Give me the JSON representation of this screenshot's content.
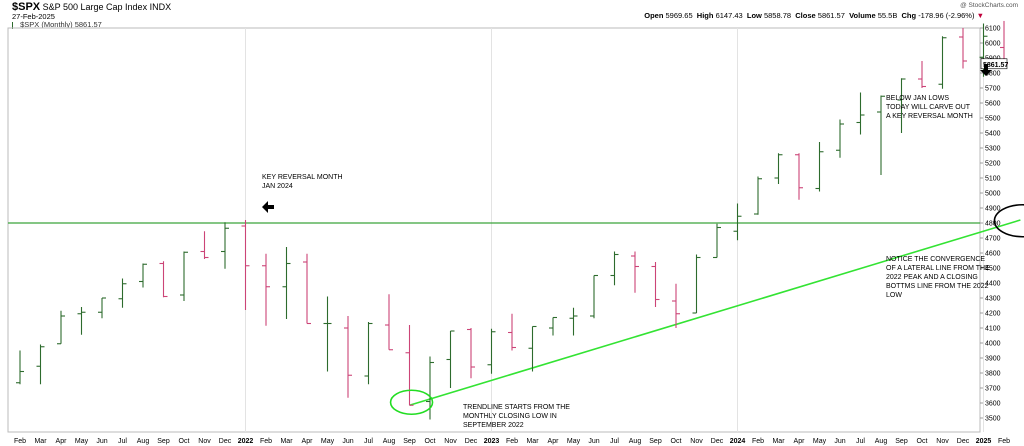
{
  "header": {
    "symbol": "$SPX",
    "name": "S&P 500 Large Cap Index",
    "exchange": "INDX",
    "date": "27-Feb-2025",
    "legend": "$SPX (Monthly) 5861.57",
    "credit": "@ StockCharts.com",
    "open_label": "Open",
    "open": "5969.65",
    "high_label": "High",
    "high": "6147.43",
    "low_label": "Low",
    "low": "5858.78",
    "close_label": "Close",
    "close": "5861.57",
    "volume_label": "Volume",
    "volume": "55.5B",
    "chg_label": "Chg",
    "chg": "-178.96 (-2.96%)",
    "chg_arrow": "▼"
  },
  "annotations": {
    "key_reversal": [
      "KEY REVERSAL MONTH",
      "JAN 2024"
    ],
    "below_jan": [
      "BELOW JAN LOWS",
      "TODAY WILL CARVE OUT",
      "A KEY REVERSAL MONTH"
    ],
    "convergence": [
      "NOTICE THE CONVERGENCE",
      "OF A LATERAL LINE FROM THE",
      "2022 PEAK AND A CLOSING",
      "BOTTMS LINE FROM THE 2022",
      "LOW"
    ],
    "trendline": [
      "TRENDLINE STARTS FROM THE",
      "MONTHLY CLOSING LOW IN",
      "SEPTEMBER 2022"
    ]
  },
  "colors": {
    "up": "#2d6b2d",
    "down": "#cc4477",
    "lateral_line": "#3aa53a",
    "trend_line": "#33e333",
    "circle_green": "#22dd22",
    "circle_black": "#000000",
    "grid": "#e3e3e3"
  },
  "chart_data": {
    "type": "ohlc",
    "y_axis_position": "right",
    "ylim": [
      3500,
      6150
    ],
    "y_ticks": [
      3500,
      3600,
      3700,
      3800,
      3900,
      4000,
      4100,
      4200,
      4300,
      4400,
      4500,
      4600,
      4700,
      4800,
      4900,
      5000,
      5100,
      5200,
      5300,
      5400,
      5500,
      5600,
      5700,
      5800,
      5900,
      6000,
      6100
    ],
    "last_price_label": "5861.57",
    "x_labels": [
      {
        "i": 0,
        "label": "Feb"
      },
      {
        "i": 1,
        "label": "Mar"
      },
      {
        "i": 2,
        "label": "Apr"
      },
      {
        "i": 3,
        "label": "May"
      },
      {
        "i": 4,
        "label": "Jun"
      },
      {
        "i": 5,
        "label": "Jul"
      },
      {
        "i": 6,
        "label": "Aug"
      },
      {
        "i": 7,
        "label": "Sep"
      },
      {
        "i": 8,
        "label": "Oct"
      },
      {
        "i": 9,
        "label": "Nov"
      },
      {
        "i": 10,
        "label": "Dec"
      },
      {
        "i": 11,
        "label": "2022",
        "bold": true
      },
      {
        "i": 12,
        "label": "Feb"
      },
      {
        "i": 13,
        "label": "Mar"
      },
      {
        "i": 14,
        "label": "Apr"
      },
      {
        "i": 15,
        "label": "May"
      },
      {
        "i": 16,
        "label": "Jun"
      },
      {
        "i": 17,
        "label": "Jul"
      },
      {
        "i": 18,
        "label": "Aug"
      },
      {
        "i": 19,
        "label": "Sep"
      },
      {
        "i": 20,
        "label": "Oct"
      },
      {
        "i": 21,
        "label": "Nov"
      },
      {
        "i": 22,
        "label": "Dec"
      },
      {
        "i": 23,
        "label": "2023",
        "bold": true
      },
      {
        "i": 24,
        "label": "Feb"
      },
      {
        "i": 25,
        "label": "Mar"
      },
      {
        "i": 26,
        "label": "Apr"
      },
      {
        "i": 27,
        "label": "May"
      },
      {
        "i": 28,
        "label": "Jun"
      },
      {
        "i": 29,
        "label": "Jul"
      },
      {
        "i": 30,
        "label": "Aug"
      },
      {
        "i": 31,
        "label": "Sep"
      },
      {
        "i": 32,
        "label": "Oct"
      },
      {
        "i": 33,
        "label": "Nov"
      },
      {
        "i": 34,
        "label": "Dec"
      },
      {
        "i": 35,
        "label": "2024",
        "bold": true
      },
      {
        "i": 36,
        "label": "Feb"
      },
      {
        "i": 37,
        "label": "Mar"
      },
      {
        "i": 38,
        "label": "Apr"
      },
      {
        "i": 39,
        "label": "May"
      },
      {
        "i": 40,
        "label": "Jun"
      },
      {
        "i": 41,
        "label": "Jul"
      },
      {
        "i": 42,
        "label": "Aug"
      },
      {
        "i": 43,
        "label": "Sep"
      },
      {
        "i": 44,
        "label": "Oct"
      },
      {
        "i": 45,
        "label": "Nov"
      },
      {
        "i": 46,
        "label": "Dec"
      },
      {
        "i": 47,
        "label": "2025",
        "bold": true
      },
      {
        "i": 48,
        "label": "Feb"
      }
    ],
    "bars": [
      {
        "o": 3735,
        "h": 3950,
        "l": 3725,
        "c": 3810
      },
      {
        "o": 3845,
        "h": 3990,
        "l": 3725,
        "c": 3975
      },
      {
        "o": 3995,
        "h": 4215,
        "l": 3995,
        "c": 4180
      },
      {
        "o": 4195,
        "h": 4240,
        "l": 4055,
        "c": 4205
      },
      {
        "o": 4205,
        "h": 4300,
        "l": 4165,
        "c": 4300
      },
      {
        "o": 4295,
        "h": 4430,
        "l": 4235,
        "c": 4395
      },
      {
        "o": 4410,
        "h": 4530,
        "l": 4370,
        "c": 4525
      },
      {
        "o": 4530,
        "h": 4545,
        "l": 4305,
        "c": 4310
      },
      {
        "o": 4320,
        "h": 4610,
        "l": 4280,
        "c": 4605
      },
      {
        "o": 4610,
        "h": 4745,
        "l": 4560,
        "c": 4570
      },
      {
        "o": 4610,
        "h": 4805,
        "l": 4495,
        "c": 4765
      },
      {
        "o": 4780,
        "h": 4820,
        "l": 4220,
        "c": 4515
      },
      {
        "o": 4515,
        "h": 4595,
        "l": 4115,
        "c": 4375
      },
      {
        "o": 4375,
        "h": 4640,
        "l": 4160,
        "c": 4530
      },
      {
        "o": 4540,
        "h": 4595,
        "l": 4130,
        "c": 4130
      },
      {
        "o": 4130,
        "h": 4310,
        "l": 3810,
        "c": 4130
      },
      {
        "o": 4100,
        "h": 4180,
        "l": 3635,
        "c": 3785
      },
      {
        "o": 3780,
        "h": 4140,
        "l": 3725,
        "c": 4130
      },
      {
        "o": 4120,
        "h": 4325,
        "l": 3955,
        "c": 3955
      },
      {
        "o": 3935,
        "h": 4120,
        "l": 3585,
        "c": 3585
      },
      {
        "o": 3610,
        "h": 3910,
        "l": 3490,
        "c": 3870
      },
      {
        "o": 3890,
        "h": 4080,
        "l": 3700,
        "c": 4080
      },
      {
        "o": 4090,
        "h": 4100,
        "l": 3765,
        "c": 3840
      },
      {
        "o": 3855,
        "h": 4095,
        "l": 3795,
        "c": 4075
      },
      {
        "o": 4070,
        "h": 4195,
        "l": 3950,
        "c": 3970
      },
      {
        "o": 3965,
        "h": 4110,
        "l": 3810,
        "c": 4110
      },
      {
        "o": 4100,
        "h": 4170,
        "l": 4050,
        "c": 4170
      },
      {
        "o": 4165,
        "h": 4235,
        "l": 4050,
        "c": 4180
      },
      {
        "o": 4180,
        "h": 4450,
        "l": 4165,
        "c": 4450
      },
      {
        "o": 4450,
        "h": 4610,
        "l": 4385,
        "c": 4590
      },
      {
        "o": 4580,
        "h": 4610,
        "l": 4335,
        "c": 4510
      },
      {
        "o": 4510,
        "h": 4540,
        "l": 4240,
        "c": 4290
      },
      {
        "o": 4280,
        "h": 4395,
        "l": 4100,
        "c": 4195
      },
      {
        "o": 4200,
        "h": 4590,
        "l": 4200,
        "c": 4570
      },
      {
        "o": 4570,
        "h": 4795,
        "l": 4570,
        "c": 4770
      },
      {
        "o": 4745,
        "h": 4930,
        "l": 4685,
        "c": 4845
      },
      {
        "o": 4860,
        "h": 5110,
        "l": 4855,
        "c": 5095
      },
      {
        "o": 5100,
        "h": 5265,
        "l": 5060,
        "c": 5255
      },
      {
        "o": 5255,
        "h": 5265,
        "l": 4955,
        "c": 5035
      },
      {
        "o": 5030,
        "h": 5340,
        "l": 5010,
        "c": 5275
      },
      {
        "o": 5285,
        "h": 5490,
        "l": 5235,
        "c": 5460
      },
      {
        "o": 5470,
        "h": 5670,
        "l": 5390,
        "c": 5520
      },
      {
        "o": 5540,
        "h": 5650,
        "l": 5120,
        "c": 5645
      },
      {
        "o": 5620,
        "h": 5765,
        "l": 5400,
        "c": 5760
      },
      {
        "o": 5760,
        "h": 5880,
        "l": 5700,
        "c": 5710
      },
      {
        "o": 5725,
        "h": 6045,
        "l": 5695,
        "c": 6035
      },
      {
        "o": 6040,
        "h": 6100,
        "l": 5830,
        "c": 5880
      },
      {
        "o": 5905,
        "h": 6130,
        "l": 5775,
        "c": 6045
      },
      {
        "o": 5970,
        "h": 6147,
        "l": 5859,
        "c": 5862
      }
    ],
    "lateral_line": {
      "price": 4800
    },
    "trend_line": {
      "from": {
        "i": 19,
        "price": 3585
      },
      "to": {
        "i": 48.8,
        "price": 4820
      }
    }
  }
}
